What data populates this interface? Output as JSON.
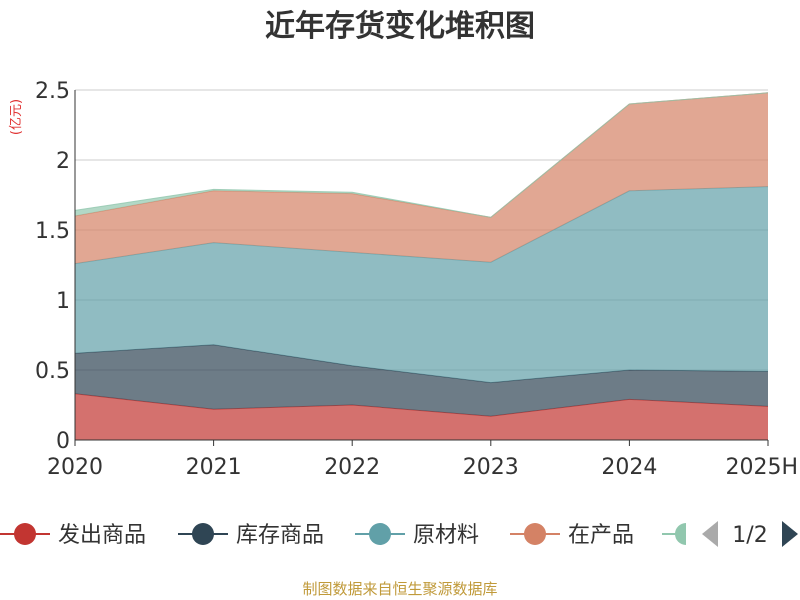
{
  "chart_data": {
    "type": "area",
    "stacked": true,
    "title": "近年存货变化堆积图",
    "unit_label": "(亿元)",
    "categories": [
      "2020",
      "2021",
      "2022",
      "2023",
      "2024",
      "2025H"
    ],
    "ylim": [
      0,
      2.5
    ],
    "yticks": [
      "0",
      "0.5",
      "1",
      "1.5",
      "2",
      "2.5"
    ],
    "grid": true,
    "series": [
      {
        "name": "发出商品",
        "color": "#c23531",
        "values": [
          0.33,
          0.22,
          0.25,
          0.17,
          0.29,
          0.24
        ]
      },
      {
        "name": "库存商品",
        "color": "#2f4554",
        "values": [
          0.29,
          0.46,
          0.28,
          0.24,
          0.21,
          0.25
        ]
      },
      {
        "name": "原材料",
        "color": "#61a0a8",
        "values": [
          0.64,
          0.73,
          0.81,
          0.86,
          1.28,
          1.32
        ]
      },
      {
        "name": "在产品",
        "color": "#d48265",
        "values": [
          0.34,
          0.37,
          0.42,
          0.32,
          0.62,
          0.67
        ]
      },
      {
        "name": "",
        "color": "#91c7ae",
        "values": [
          0.04,
          0.01,
          0.01,
          0.0,
          0.0,
          0.0
        ]
      }
    ],
    "legend": {
      "position": "bottom",
      "page": "1/2"
    }
  },
  "footer": {
    "source": "制图数据来自恒生聚源数据库"
  }
}
